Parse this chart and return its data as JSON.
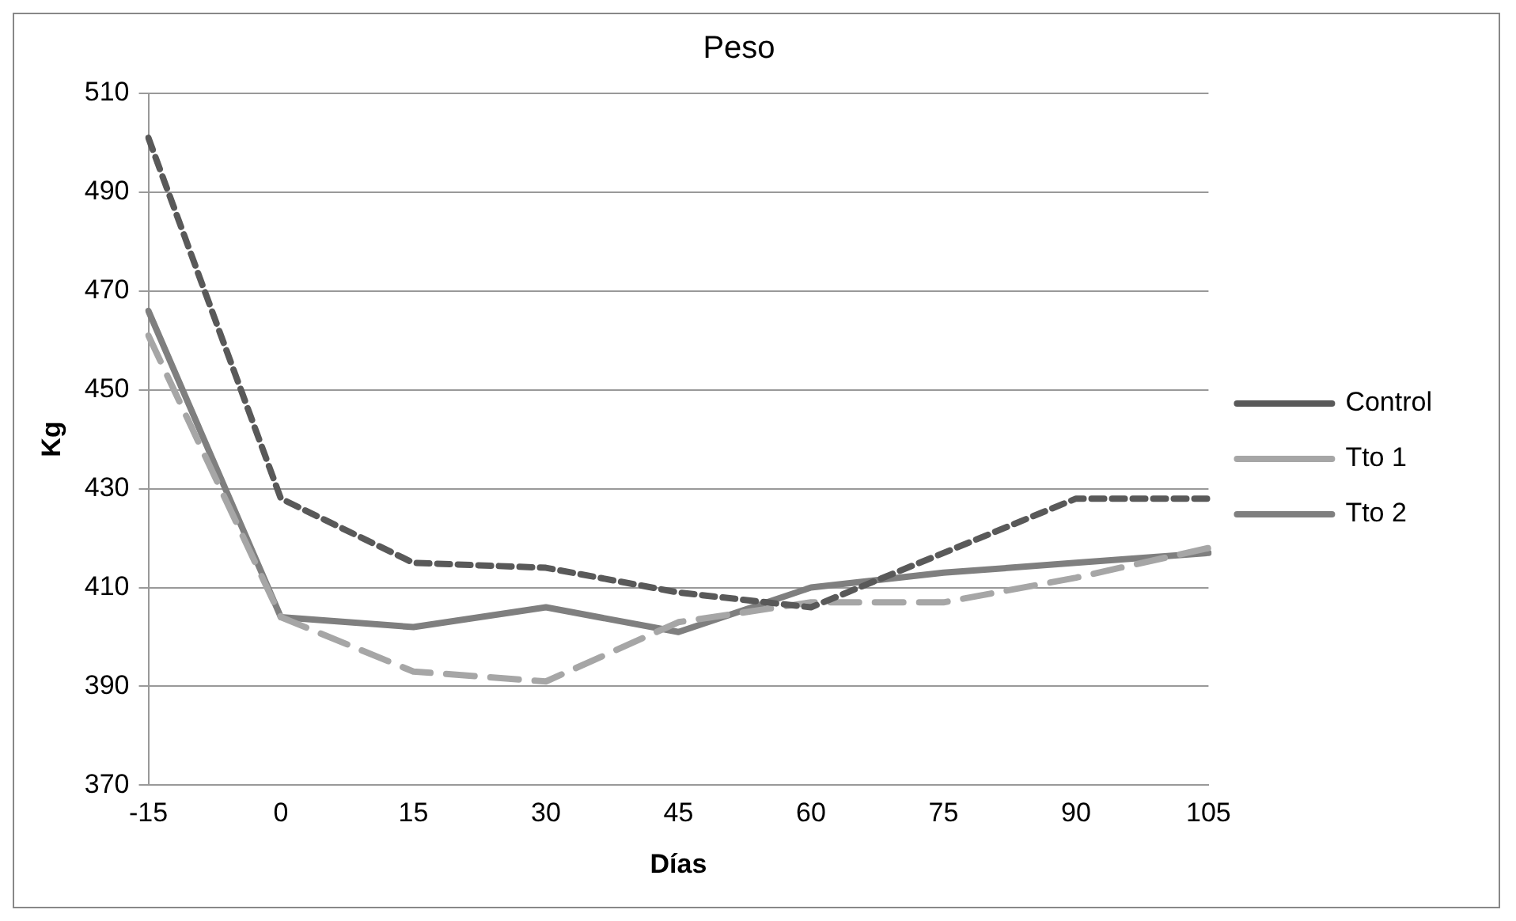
{
  "chart_data": {
    "type": "line",
    "title": "Peso",
    "xlabel": "Días",
    "ylabel": "Kg",
    "categories": [
      "-15",
      "0",
      "15",
      "30",
      "45",
      "60",
      "75",
      "90",
      "105"
    ],
    "series": [
      {
        "name": "Control",
        "color": "#595959",
        "line_style": "dotted",
        "values": [
          501,
          428,
          415,
          414,
          409,
          406,
          417,
          428,
          428
        ]
      },
      {
        "name": "Tto 1",
        "color": "#a6a6a6",
        "line_style": "dashed",
        "values": [
          461,
          404,
          393,
          391,
          403,
          407,
          407,
          412,
          418
        ]
      },
      {
        "name": "Tto 2",
        "color": "#7f7f7f",
        "line_style": "solid",
        "values": [
          466,
          404,
          402,
          406,
          401,
          410,
          413,
          415,
          417
        ]
      }
    ],
    "ylim": [
      370,
      510
    ],
    "yticks": [
      370,
      390,
      410,
      430,
      450,
      470,
      490,
      510
    ],
    "grid": "y",
    "legend": "right",
    "marker": "none"
  }
}
